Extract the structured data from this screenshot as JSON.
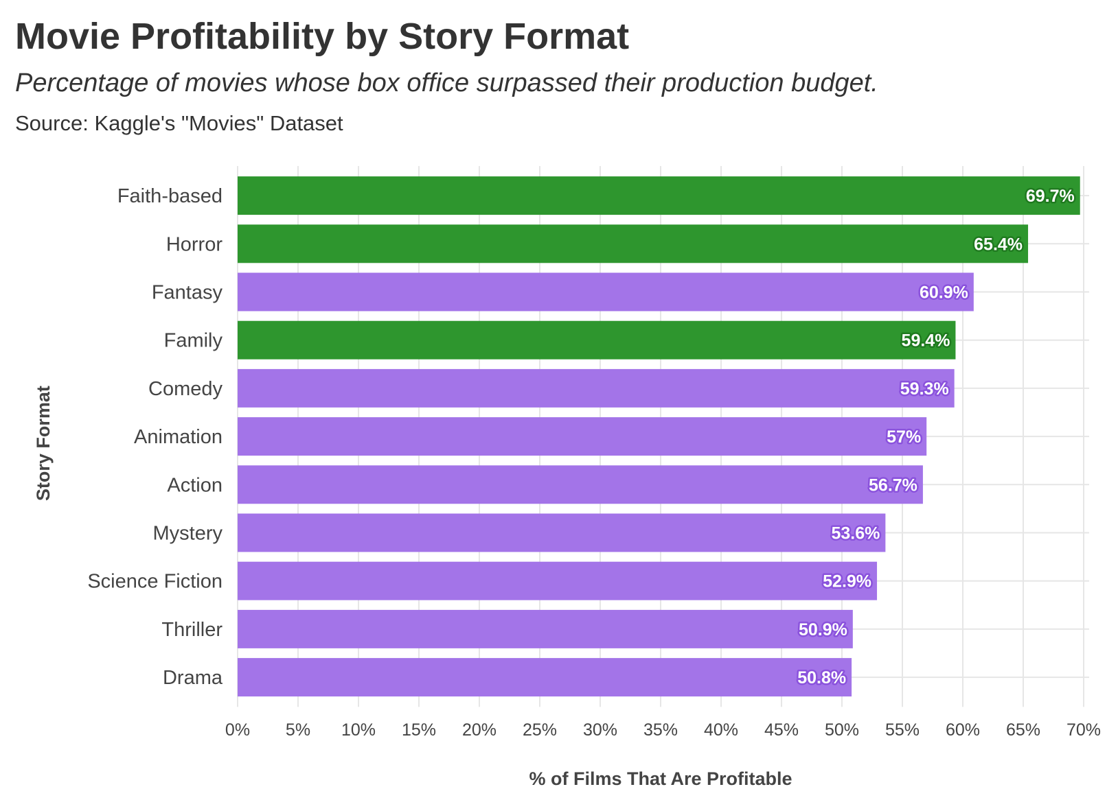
{
  "chart_data": {
    "type": "bar",
    "orientation": "horizontal",
    "title": "Movie Profitability by Story Format",
    "subtitle": "Percentage of movies whose box office surpassed their production budget.",
    "caption": "Source: Kaggle's \"Movies\" Dataset",
    "xlabel": "% of Films That Are Profitable",
    "ylabel": "Story Format",
    "xlim": [
      0,
      70
    ],
    "x_ticks": [
      0,
      5,
      10,
      15,
      20,
      25,
      30,
      35,
      40,
      45,
      50,
      55,
      60,
      65,
      70
    ],
    "x_tick_labels": [
      "0%",
      "5%",
      "10%",
      "15%",
      "20%",
      "25%",
      "30%",
      "35%",
      "40%",
      "45%",
      "50%",
      "55%",
      "60%",
      "65%",
      "70%"
    ],
    "grid": true,
    "categories": [
      "Faith-based",
      "Horror",
      "Fantasy",
      "Family",
      "Comedy",
      "Animation",
      "Action",
      "Mystery",
      "Science Fiction",
      "Thriller",
      "Drama"
    ],
    "values": [
      69.7,
      65.4,
      60.9,
      59.4,
      59.3,
      57.0,
      56.7,
      53.6,
      52.9,
      50.9,
      50.8
    ],
    "value_labels": [
      "69.7%",
      "65.4%",
      "60.9%",
      "59.4%",
      "59.3%",
      "57%",
      "56.7%",
      "53.6%",
      "52.9%",
      "50.9%",
      "50.8%"
    ],
    "highlighted": [
      true,
      true,
      false,
      true,
      false,
      false,
      false,
      false,
      false,
      false,
      false
    ],
    "colors": {
      "highlight": "#2e962e",
      "highlight_outline": "#1f7a1f",
      "default": "#a374e8",
      "default_outline": "#8a52dc",
      "grid": "#e6e6e6"
    }
  }
}
